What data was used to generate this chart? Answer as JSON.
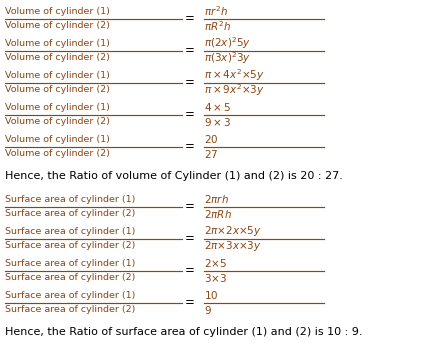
{
  "background_color": "#ffffff",
  "text_color": "#000000",
  "label_color": "#8B4513",
  "formula_color": "#8B4513",
  "figsize": [
    4.23,
    3.47
  ],
  "dpi": 100,
  "volume_conclusion": "Hence, the Ratio of volume of Cylinder (1) and (2) is 20 : 27.",
  "surface_conclusion": "Hence, the Ratio of surface area of cylinder (1) and (2) is 10 : 9."
}
